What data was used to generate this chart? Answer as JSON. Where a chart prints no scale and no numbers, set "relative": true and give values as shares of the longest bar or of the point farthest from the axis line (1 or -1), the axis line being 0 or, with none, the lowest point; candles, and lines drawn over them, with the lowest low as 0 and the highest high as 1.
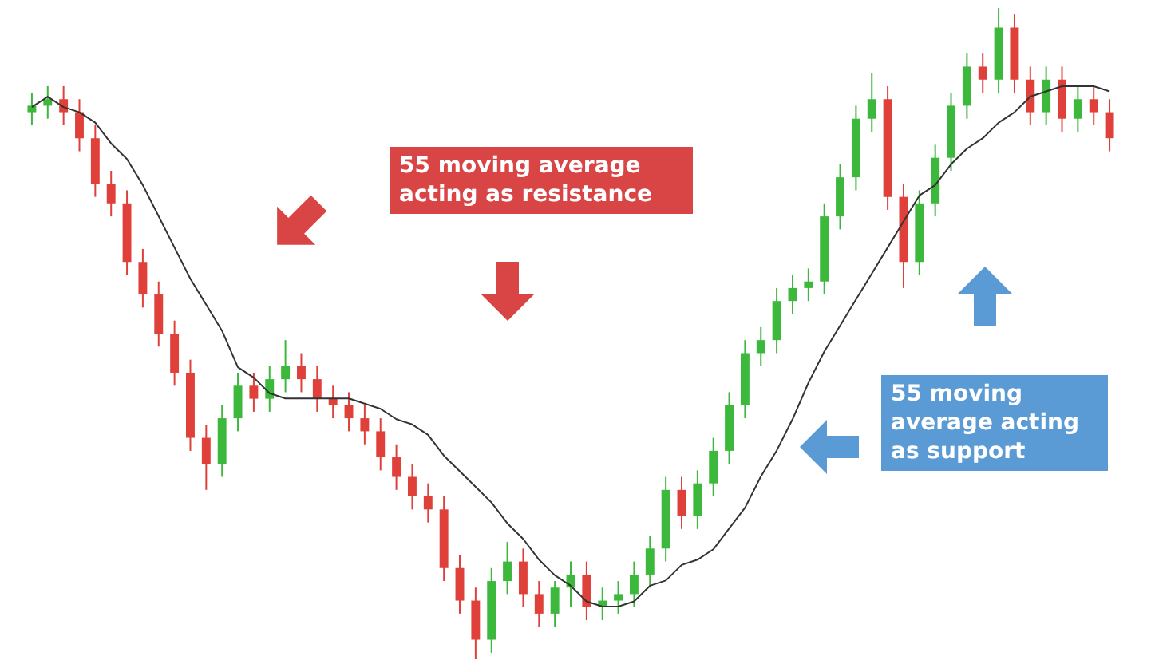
{
  "chart_data": [
    {
      "type": "candlestick",
      "relative": true,
      "categories": [
        null,
        null,
        null,
        null,
        null,
        null,
        null,
        null,
        null,
        null,
        null,
        null,
        null,
        null,
        null,
        null,
        null,
        null,
        null,
        null,
        null,
        null,
        null,
        null,
        null,
        null,
        null,
        null,
        null,
        null,
        null,
        null,
        null,
        null,
        null,
        null,
        null,
        null,
        null,
        null,
        null,
        null,
        null,
        null,
        null,
        null,
        null,
        null,
        null,
        null,
        null,
        null,
        null,
        null,
        null,
        null,
        null,
        null,
        null,
        null,
        null,
        null,
        null,
        null,
        null,
        null,
        null,
        null,
        null
      ],
      "ohlc": [
        [
          0.84,
          0.87,
          0.82,
          0.85
        ],
        [
          0.85,
          0.88,
          0.83,
          0.86
        ],
        [
          0.86,
          0.88,
          0.82,
          0.84
        ],
        [
          0.84,
          0.86,
          0.78,
          0.8
        ],
        [
          0.8,
          0.82,
          0.71,
          0.73
        ],
        [
          0.73,
          0.75,
          0.68,
          0.7
        ],
        [
          0.7,
          0.72,
          0.59,
          0.61
        ],
        [
          0.61,
          0.63,
          0.54,
          0.56
        ],
        [
          0.56,
          0.58,
          0.48,
          0.5
        ],
        [
          0.5,
          0.52,
          0.42,
          0.44
        ],
        [
          0.44,
          0.46,
          0.32,
          0.34
        ],
        [
          0.34,
          0.36,
          0.26,
          0.3
        ],
        [
          0.3,
          0.39,
          0.28,
          0.37
        ],
        [
          0.37,
          0.44,
          0.35,
          0.42
        ],
        [
          0.42,
          0.44,
          0.38,
          0.4
        ],
        [
          0.4,
          0.45,
          0.38,
          0.43
        ],
        [
          0.43,
          0.49,
          0.41,
          0.45
        ],
        [
          0.45,
          0.47,
          0.41,
          0.43
        ],
        [
          0.43,
          0.45,
          0.38,
          0.4
        ],
        [
          0.4,
          0.42,
          0.37,
          0.39
        ],
        [
          0.39,
          0.41,
          0.35,
          0.37
        ],
        [
          0.37,
          0.39,
          0.33,
          0.35
        ],
        [
          0.35,
          0.37,
          0.29,
          0.31
        ],
        [
          0.31,
          0.33,
          0.26,
          0.28
        ],
        [
          0.28,
          0.3,
          0.23,
          0.25
        ],
        [
          0.25,
          0.27,
          0.21,
          0.23
        ],
        [
          0.23,
          0.25,
          0.12,
          0.14
        ],
        [
          0.14,
          0.16,
          0.07,
          0.09
        ],
        [
          0.09,
          0.11,
          0.0,
          0.03
        ],
        [
          0.03,
          0.14,
          0.01,
          0.12
        ],
        [
          0.12,
          0.18,
          0.1,
          0.15
        ],
        [
          0.15,
          0.17,
          0.08,
          0.1
        ],
        [
          0.1,
          0.12,
          0.05,
          0.07
        ],
        [
          0.07,
          0.12,
          0.05,
          0.11
        ],
        [
          0.11,
          0.15,
          0.08,
          0.13
        ],
        [
          0.13,
          0.15,
          0.06,
          0.08
        ],
        [
          0.08,
          0.11,
          0.06,
          0.09
        ],
        [
          0.09,
          0.12,
          0.07,
          0.1
        ],
        [
          0.1,
          0.15,
          0.08,
          0.13
        ],
        [
          0.13,
          0.19,
          0.11,
          0.17
        ],
        [
          0.17,
          0.28,
          0.15,
          0.26
        ],
        [
          0.26,
          0.28,
          0.2,
          0.22
        ],
        [
          0.22,
          0.29,
          0.2,
          0.27
        ],
        [
          0.27,
          0.34,
          0.25,
          0.32
        ],
        [
          0.32,
          0.41,
          0.3,
          0.39
        ],
        [
          0.39,
          0.49,
          0.37,
          0.47
        ],
        [
          0.47,
          0.51,
          0.45,
          0.49
        ],
        [
          0.49,
          0.57,
          0.47,
          0.55
        ],
        [
          0.55,
          0.59,
          0.53,
          0.57
        ],
        [
          0.57,
          0.6,
          0.55,
          0.58
        ],
        [
          0.58,
          0.7,
          0.56,
          0.68
        ],
        [
          0.68,
          0.76,
          0.66,
          0.74
        ],
        [
          0.74,
          0.85,
          0.72,
          0.83
        ],
        [
          0.83,
          0.9,
          0.81,
          0.86
        ],
        [
          0.86,
          0.88,
          0.69,
          0.71
        ],
        [
          0.71,
          0.73,
          0.57,
          0.61
        ],
        [
          0.61,
          0.72,
          0.59,
          0.7
        ],
        [
          0.7,
          0.79,
          0.68,
          0.77
        ],
        [
          0.77,
          0.87,
          0.75,
          0.85
        ],
        [
          0.85,
          0.93,
          0.83,
          0.91
        ],
        [
          0.91,
          0.93,
          0.87,
          0.89
        ],
        [
          0.89,
          1.0,
          0.87,
          0.97
        ],
        [
          0.97,
          0.99,
          0.87,
          0.89
        ],
        [
          0.89,
          0.91,
          0.82,
          0.84
        ],
        [
          0.84,
          0.91,
          0.82,
          0.89
        ],
        [
          0.89,
          0.91,
          0.81,
          0.83
        ],
        [
          0.83,
          0.88,
          0.81,
          0.86
        ],
        [
          0.86,
          0.88,
          0.82,
          0.84
        ],
        [
          0.84,
          0.86,
          0.78,
          0.8
        ]
      ],
      "colors": [
        "#3cb83c",
        "#3cb83c",
        "#e0403a",
        "#e0403a",
        "#e0403a",
        "#e0403a",
        "#e0403a",
        "#e0403a",
        "#e0403a",
        "#e0403a",
        "#e0403a",
        "#e0403a",
        "#3cb83c",
        "#3cb83c",
        "#e0403a",
        "#3cb83c",
        "#3cb83c",
        "#e0403a",
        "#e0403a",
        "#e0403a",
        "#e0403a",
        "#e0403a",
        "#e0403a",
        "#e0403a",
        "#e0403a",
        "#e0403a",
        "#e0403a",
        "#e0403a",
        "#e0403a",
        "#3cb83c",
        "#3cb83c",
        "#e0403a",
        "#e0403a",
        "#3cb83c",
        "#3cb83c",
        "#e0403a",
        "#3cb83c",
        "#3cb83c",
        "#3cb83c",
        "#3cb83c",
        "#3cb83c",
        "#e0403a",
        "#3cb83c",
        "#3cb83c",
        "#3cb83c",
        "#3cb83c",
        "#3cb83c",
        "#3cb83c",
        "#3cb83c",
        "#3cb83c",
        "#3cb83c",
        "#3cb83c",
        "#3cb83c",
        "#3cb83c",
        "#e0403a",
        "#e0403a",
        "#3cb83c",
        "#3cb83c",
        "#3cb83c",
        "#3cb83c",
        "#e0403a",
        "#3cb83c",
        "#e0403a",
        "#e0403a",
        "#3cb83c",
        "#e0403a",
        "#3cb83c",
        "#e0403a",
        "#e0403a"
      ],
      "annotations": [
        "55 moving average acting as resistance",
        "55 moving average acting as support"
      ]
    },
    {
      "type": "line",
      "relative": true,
      "marker": "none",
      "line_style": "solid",
      "categories": [
        null,
        null,
        null,
        null,
        null,
        null,
        null,
        null,
        null,
        null,
        null,
        null,
        null,
        null,
        null,
        null,
        null,
        null,
        null,
        null,
        null,
        null,
        null,
        null,
        null,
        null,
        null,
        null,
        null,
        null,
        null,
        null,
        null,
        null,
        null,
        null,
        null,
        null,
        null,
        null,
        null,
        null,
        null,
        null,
        null,
        null,
        null,
        null,
        null,
        null,
        null,
        null,
        null,
        null,
        null,
        null,
        null,
        null,
        null,
        null,
        null,
        null,
        null,
        null,
        null,
        null,
        null,
        null,
        null
      ],
      "series": [
        {
          "color": "#333333",
          "values": [
            0.96,
            0.98,
            0.96,
            0.95,
            0.93,
            0.89,
            0.86,
            0.81,
            0.75,
            0.69,
            0.63,
            0.58,
            0.53,
            0.46,
            0.44,
            0.41,
            0.4,
            0.4,
            0.4,
            0.4,
            0.4,
            0.39,
            0.38,
            0.36,
            0.35,
            0.33,
            0.29,
            0.26,
            0.23,
            0.2,
            0.16,
            0.13,
            0.09,
            0.06,
            0.04,
            0.01,
            0,
            0,
            0.01,
            0.04,
            0.05,
            0.08,
            0.09,
            0.11,
            0.15,
            0.19,
            0.25,
            0.3,
            0.36,
            0.43,
            0.49,
            0.54,
            0.59,
            0.64,
            0.69,
            0.74,
            0.79,
            0.81,
            0.85,
            0.88,
            0.9,
            0.93,
            0.95,
            0.98,
            0.99,
            1.0,
            1.0,
            1.0,
            0.99
          ]
        }
      ]
    }
  ]
}
